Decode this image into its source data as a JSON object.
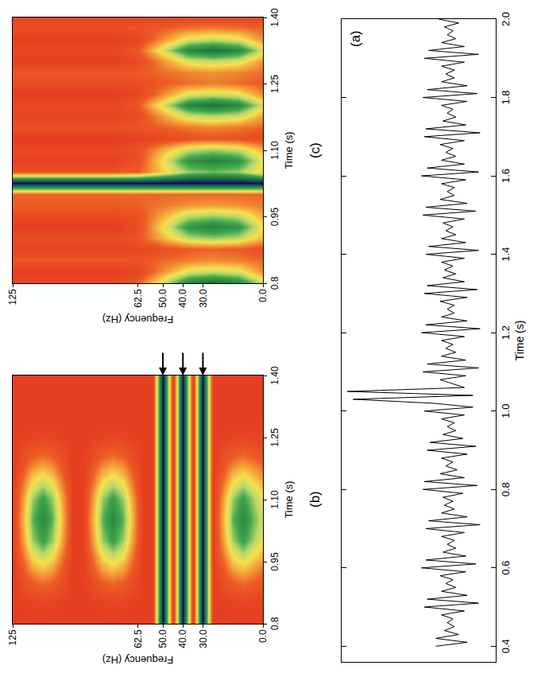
{
  "chart_data": [
    {
      "type": "line",
      "label": "(a)",
      "x_title": "Time (s)",
      "color": "#000000",
      "x": [
        0.4,
        0.41,
        0.42,
        0.43,
        0.44,
        0.45,
        0.46,
        0.47,
        0.48,
        0.49,
        0.5,
        0.51,
        0.52,
        0.53,
        0.54,
        0.55,
        0.56,
        0.57,
        0.58,
        0.59,
        0.6,
        0.61,
        0.62,
        0.63,
        0.64,
        0.65,
        0.66,
        0.67,
        0.68,
        0.69,
        0.7,
        0.71,
        0.72,
        0.73,
        0.74,
        0.75,
        0.76,
        0.77,
        0.78,
        0.79,
        0.8,
        0.81,
        0.82,
        0.83,
        0.84,
        0.85,
        0.86,
        0.87,
        0.88,
        0.89,
        0.9,
        0.91,
        0.92,
        0.93,
        0.94,
        0.95,
        0.96,
        0.97,
        0.98,
        0.99,
        1.0,
        1.01,
        1.02,
        1.03,
        1.04,
        1.05,
        1.06,
        1.07,
        1.08,
        1.09,
        1.1,
        1.11,
        1.12,
        1.13,
        1.14,
        1.15,
        1.16,
        1.17,
        1.18,
        1.19,
        1.2,
        1.21,
        1.22,
        1.23,
        1.24,
        1.25,
        1.26,
        1.27,
        1.28,
        1.29,
        1.3,
        1.31,
        1.32,
        1.33,
        1.34,
        1.35,
        1.36,
        1.37,
        1.38,
        1.39,
        1.4,
        1.41,
        1.42,
        1.43,
        1.44,
        1.45,
        1.46,
        1.47,
        1.48,
        1.49,
        1.5,
        1.51,
        1.52,
        1.53,
        1.54,
        1.55,
        1.56,
        1.57,
        1.58,
        1.59,
        1.6,
        1.61,
        1.62,
        1.63,
        1.64,
        1.65,
        1.66,
        1.67,
        1.68,
        1.69,
        1.7,
        1.71,
        1.72,
        1.73,
        1.74,
        1.75,
        1.76,
        1.77,
        1.78,
        1.79,
        1.8,
        1.81,
        1.82,
        1.83,
        1.84,
        1.85,
        1.86,
        1.87,
        1.88,
        1.89,
        1.9,
        1.91,
        1.92,
        1.93,
        1.94,
        1.95,
        1.96,
        1.97,
        1.98,
        1.99,
        2.0
      ],
      "values": [
        0.5,
        -0.6,
        0.5,
        -0.3,
        0.2,
        -0.15,
        0.1,
        -0.1,
        0.3,
        -0.5,
        0.9,
        -1.0,
        0.8,
        -0.6,
        0.3,
        -0.2,
        0.15,
        -0.1,
        0.35,
        -0.55,
        1.0,
        -0.9,
        0.85,
        -0.55,
        0.25,
        -0.2,
        0.1,
        -0.15,
        0.3,
        -0.5,
        0.85,
        -1.05,
        0.75,
        -0.6,
        0.3,
        -0.15,
        0.2,
        -0.1,
        0.25,
        -0.45,
        0.95,
        -0.95,
        0.9,
        -0.5,
        0.35,
        -0.25,
        0.15,
        -0.1,
        0.3,
        -0.6,
        0.8,
        -0.9,
        0.7,
        -0.45,
        0.25,
        -0.2,
        0.1,
        -0.15,
        0.3,
        -0.5,
        0.9,
        -0.8,
        0.6,
        3.4,
        -0.8,
        3.6,
        -0.5,
        -0.1,
        0.35,
        -0.55,
        0.95,
        -1.0,
        0.8,
        -0.55,
        0.3,
        -0.2,
        0.15,
        -0.1,
        0.3,
        -0.5,
        1.0,
        -1.05,
        0.85,
        -0.6,
        0.3,
        -0.15,
        0.1,
        -0.15,
        0.35,
        -0.6,
        0.9,
        -0.95,
        0.8,
        -0.5,
        0.25,
        -0.2,
        0.2,
        -0.1,
        0.3,
        -0.5,
        0.85,
        -1.0,
        0.75,
        -0.55,
        0.3,
        -0.2,
        0.15,
        -0.1,
        0.25,
        -0.5,
        0.95,
        -0.9,
        0.85,
        -0.6,
        0.35,
        -0.15,
        0.1,
        -0.15,
        0.3,
        -0.55,
        1.0,
        -1.0,
        0.8,
        -0.5,
        0.3,
        -0.2,
        0.15,
        -0.1,
        0.35,
        -0.5,
        0.9,
        -1.05,
        0.85,
        -0.55,
        0.25,
        -0.2,
        0.1,
        -0.1,
        0.3,
        -0.6,
        0.95,
        -0.95,
        0.8,
        -0.6,
        0.3,
        -0.15,
        0.15,
        -0.15,
        0.3,
        -0.5,
        0.9,
        -1.0,
        0.75,
        -0.5,
        0.3,
        -0.2,
        0.1,
        -0.1,
        0.2,
        -0.3,
        0.4
      ],
      "xlim": [
        0.36,
        2.0
      ],
      "xticks": [
        0.4,
        0.6,
        0.8,
        {
          "value": 1,
          "label": "1.0"
        },
        1.2,
        1.4,
        1.6,
        1.8,
        {
          "value": 2,
          "label": "2.0"
        }
      ],
      "ylim": [
        -1.6,
        3.8
      ],
      "tick_labels": "x"
    },
    {
      "type": "heatmap",
      "label": "(b)",
      "x_title": "Time (s)",
      "y_title": "Frequency (Hz)",
      "x": [
        0.8,
        0.85,
        0.9,
        0.95,
        1.0,
        1.05,
        1.1,
        1.15,
        1.2,
        1.25,
        1.3,
        1.35,
        1.4
      ],
      "y": [
        0,
        5,
        10,
        15,
        20,
        25,
        30,
        35,
        40,
        45,
        50,
        55,
        60,
        65,
        70,
        75,
        80,
        85,
        90,
        95,
        100,
        105,
        110,
        115,
        120,
        125
      ],
      "z": [
        [
          0.05,
          0.08,
          0.15,
          0.28,
          0.41,
          0.46,
          0.41,
          0.28,
          0.15,
          0.08,
          0.05,
          0.05,
          0.05
        ],
        [
          0.05,
          0.08,
          0.19,
          0.36,
          0.53,
          0.59,
          0.53,
          0.36,
          0.19,
          0.08,
          0.05,
          0.05,
          0.05
        ],
        [
          0.05,
          0.09,
          0.22,
          0.43,
          0.65,
          0.73,
          0.65,
          0.43,
          0.22,
          0.09,
          0.05,
          0.05,
          0.05
        ],
        [
          0.05,
          0.08,
          0.19,
          0.36,
          0.53,
          0.59,
          0.53,
          0.36,
          0.19,
          0.08,
          0.05,
          0.05,
          0.05
        ],
        [
          0.05,
          0.07,
          0.12,
          0.2,
          0.29,
          0.32,
          0.29,
          0.2,
          0.12,
          0.07,
          0.05,
          0.05,
          0.05
        ],
        [
          0.05,
          0.05,
          0.05,
          0.05,
          0.05,
          0.05,
          0.05,
          0.05,
          0.05,
          0.05,
          0.05,
          0.05,
          0.05
        ],
        [
          1,
          1,
          1,
          1,
          1,
          1,
          1,
          1,
          1,
          1,
          1,
          1,
          1
        ],
        [
          0.05,
          0.05,
          0.05,
          0.05,
          0.05,
          0.05,
          0.05,
          0.05,
          0.05,
          0.05,
          0.05,
          0.05,
          0.05
        ],
        [
          1,
          1,
          1,
          1,
          1,
          1,
          1,
          1,
          1,
          1,
          1,
          1,
          1
        ],
        [
          0.05,
          0.05,
          0.05,
          0.05,
          0.05,
          0.05,
          0.05,
          0.05,
          0.05,
          0.05,
          0.05,
          0.05,
          0.05
        ],
        [
          1,
          1,
          1,
          1,
          1,
          1,
          1,
          1,
          1,
          1,
          1,
          1,
          1
        ],
        [
          0.05,
          0.05,
          0.05,
          0.05,
          0.05,
          0.05,
          0.05,
          0.05,
          0.05,
          0.05,
          0.05,
          0.05,
          0.05
        ],
        [
          0.05,
          0.05,
          0.05,
          0.05,
          0.05,
          0.05,
          0.05,
          0.05,
          0.05,
          0.05,
          0.05,
          0.05,
          0.05
        ],
        [
          0.05,
          0.07,
          0.12,
          0.2,
          0.29,
          0.32,
          0.29,
          0.2,
          0.12,
          0.07,
          0.05,
          0.05,
          0.05
        ],
        [
          0.05,
          0.08,
          0.19,
          0.36,
          0.53,
          0.59,
          0.53,
          0.36,
          0.19,
          0.08,
          0.05,
          0.05,
          0.05
        ],
        [
          0.05,
          0.09,
          0.22,
          0.43,
          0.65,
          0.73,
          0.65,
          0.43,
          0.22,
          0.09,
          0.05,
          0.05,
          0.05
        ],
        [
          0.05,
          0.08,
          0.19,
          0.36,
          0.53,
          0.59,
          0.53,
          0.36,
          0.19,
          0.08,
          0.05,
          0.05,
          0.05
        ],
        [
          0.05,
          0.07,
          0.12,
          0.2,
          0.29,
          0.32,
          0.29,
          0.2,
          0.12,
          0.07,
          0.05,
          0.05,
          0.05
        ],
        [
          0.05,
          0.05,
          0.05,
          0.05,
          0.05,
          0.05,
          0.05,
          0.05,
          0.05,
          0.05,
          0.05,
          0.05,
          0.05
        ],
        [
          0.05,
          0.05,
          0.05,
          0.05,
          0.05,
          0.05,
          0.05,
          0.05,
          0.05,
          0.05,
          0.05,
          0.05,
          0.05
        ],
        [
          0.05,
          0.07,
          0.12,
          0.2,
          0.29,
          0.32,
          0.29,
          0.2,
          0.12,
          0.07,
          0.05,
          0.05,
          0.05
        ],
        [
          0.05,
          0.08,
          0.19,
          0.36,
          0.53,
          0.59,
          0.53,
          0.36,
          0.19,
          0.08,
          0.05,
          0.05,
          0.05
        ],
        [
          0.05,
          0.09,
          0.22,
          0.43,
          0.65,
          0.73,
          0.65,
          0.43,
          0.22,
          0.09,
          0.05,
          0.05,
          0.05
        ],
        [
          0.05,
          0.08,
          0.19,
          0.36,
          0.53,
          0.59,
          0.53,
          0.36,
          0.19,
          0.08,
          0.05,
          0.05,
          0.05
        ],
        [
          0.05,
          0.07,
          0.12,
          0.2,
          0.29,
          0.32,
          0.29,
          0.2,
          0.12,
          0.07,
          0.05,
          0.05,
          0.05
        ],
        [
          0.05,
          0.05,
          0.05,
          0.05,
          0.05,
          0.05,
          0.05,
          0.05,
          0.05,
          0.05,
          0.05,
          0.05,
          0.05
        ]
      ],
      "zlim": [
        0,
        1
      ],
      "xlim": [
        0.8,
        1.4
      ],
      "ylim": [
        0,
        125
      ],
      "xticks": [
        0.8,
        0.95,
        {
          "value": 1.1,
          "label": "1.10"
        },
        1.25,
        {
          "value": 1.4,
          "label": "1.40"
        }
      ],
      "yticks": [
        {
          "value": 0,
          "label": "0.0"
        },
        {
          "value": 30,
          "label": "30.0"
        },
        {
          "value": 40,
          "label": "40.0"
        },
        {
          "value": 50,
          "label": "50.0"
        },
        62.5,
        125
      ],
      "arrows": [
        50,
        40,
        30
      ]
    },
    {
      "type": "heatmap",
      "label": "(c)",
      "x_title": "Time (s)",
      "y_title": "Frequency (Hz)",
      "x": [
        0.8,
        0.825,
        0.85,
        0.875,
        0.9,
        0.925,
        0.95,
        0.975,
        1.0,
        1.025,
        1.05,
        1.075,
        1.1,
        1.125,
        1.15,
        1.175,
        1.2,
        1.225,
        1.25,
        1.275,
        1.3,
        1.325,
        1.35,
        1.375,
        1.4
      ],
      "y": [
        0,
        12.5,
        25,
        37.5,
        50,
        62.5,
        75,
        87.5,
        100,
        112.5,
        125
      ],
      "z": [
        [
          0.45,
          0.26,
          0.2,
          0.13,
          0.33,
          0.4,
          0.31,
          0.23,
          0.2,
          1,
          0.36,
          0.41,
          0.31,
          0.1,
          0.19,
          0.29,
          0.45,
          0.25,
          0.17,
          0.21,
          0.27,
          0.45,
          0.26,
          0.18,
          0.08
        ],
        [
          0.73,
          0.43,
          0.24,
          0.17,
          0.5,
          0.68,
          0.48,
          0.27,
          0.2,
          1,
          0.53,
          0.69,
          0.48,
          0.14,
          0.23,
          0.46,
          0.73,
          0.42,
          0.21,
          0.25,
          0.44,
          0.73,
          0.43,
          0.22,
          0.08
        ],
        [
          0.8,
          0.47,
          0.26,
          0.19,
          0.54,
          0.75,
          0.52,
          0.29,
          0.2,
          1,
          0.57,
          0.76,
          0.52,
          0.16,
          0.25,
          0.5,
          0.8,
          0.46,
          0.23,
          0.27,
          0.48,
          0.8,
          0.47,
          0.24,
          0.08
        ],
        [
          0.73,
          0.43,
          0.24,
          0.17,
          0.5,
          0.68,
          0.48,
          0.27,
          0.2,
          1,
          0.53,
          0.69,
          0.48,
          0.14,
          0.23,
          0.46,
          0.73,
          0.42,
          0.21,
          0.25,
          0.44,
          0.73,
          0.43,
          0.22,
          0.08
        ],
        [
          0.45,
          0.26,
          0.2,
          0.13,
          0.33,
          0.4,
          0.31,
          0.23,
          0.2,
          1,
          0.36,
          0.41,
          0.31,
          0.1,
          0.19,
          0.29,
          0.45,
          0.25,
          0.17,
          0.21,
          0.27,
          0.45,
          0.26,
          0.18,
          0.08
        ],
        [
          0.17,
          0.09,
          0.16,
          0.09,
          0.16,
          0.12,
          0.14,
          0.19,
          0.2,
          1,
          0.19,
          0.13,
          0.14,
          0.06,
          0.15,
          0.12,
          0.17,
          0.08,
          0.13,
          0.17,
          0.1,
          0.17,
          0.09,
          0.14,
          0.08
        ],
        [
          0.1,
          0.05,
          0.15,
          0.08,
          0.12,
          0.05,
          0.1,
          0.18,
          0.2,
          1,
          0.15,
          0.06,
          0.1,
          0.05,
          0.14,
          0.08,
          0.1,
          0.04,
          0.12,
          0.16,
          0.06,
          0.1,
          0.05,
          0.13,
          0.08
        ],
        [
          0.1,
          0.05,
          0.15,
          0.08,
          0.12,
          0.05,
          0.1,
          0.18,
          0.2,
          1,
          0.15,
          0.06,
          0.1,
          0.05,
          0.14,
          0.08,
          0.1,
          0.04,
          0.12,
          0.16,
          0.06,
          0.1,
          0.05,
          0.13,
          0.08
        ],
        [
          0.1,
          0.05,
          0.15,
          0.08,
          0.12,
          0.05,
          0.1,
          0.18,
          0.2,
          1,
          0.15,
          0.06,
          0.1,
          0.05,
          0.14,
          0.08,
          0.1,
          0.04,
          0.12,
          0.16,
          0.06,
          0.1,
          0.05,
          0.13,
          0.08
        ],
        [
          0.1,
          0.05,
          0.15,
          0.08,
          0.12,
          0.05,
          0.1,
          0.18,
          0.2,
          1,
          0.15,
          0.06,
          0.1,
          0.05,
          0.14,
          0.08,
          0.1,
          0.04,
          0.12,
          0.16,
          0.06,
          0.1,
          0.05,
          0.13,
          0.08
        ],
        [
          0.1,
          0.05,
          0.15,
          0.08,
          0.12,
          0.05,
          0.1,
          0.18,
          0.2,
          1,
          0.15,
          0.06,
          0.1,
          0.05,
          0.14,
          0.08,
          0.1,
          0.04,
          0.12,
          0.16,
          0.06,
          0.1,
          0.05,
          0.13,
          0.08
        ]
      ],
      "zlim": [
        0,
        1
      ],
      "xlim": [
        0.8,
        1.4
      ],
      "ylim": [
        0,
        125
      ],
      "xticks": [
        0.8,
        0.95,
        {
          "value": 1.1,
          "label": "1.10"
        },
        1.25,
        {
          "value": 1.4,
          "label": "1.40"
        }
      ],
      "yticks": [
        {
          "value": 0,
          "label": "0.0"
        },
        {
          "value": 30,
          "label": "30.0"
        },
        {
          "value": 40,
          "label": "40.0"
        },
        {
          "value": 50,
          "label": "50.0"
        },
        62.5,
        125
      ]
    }
  ]
}
